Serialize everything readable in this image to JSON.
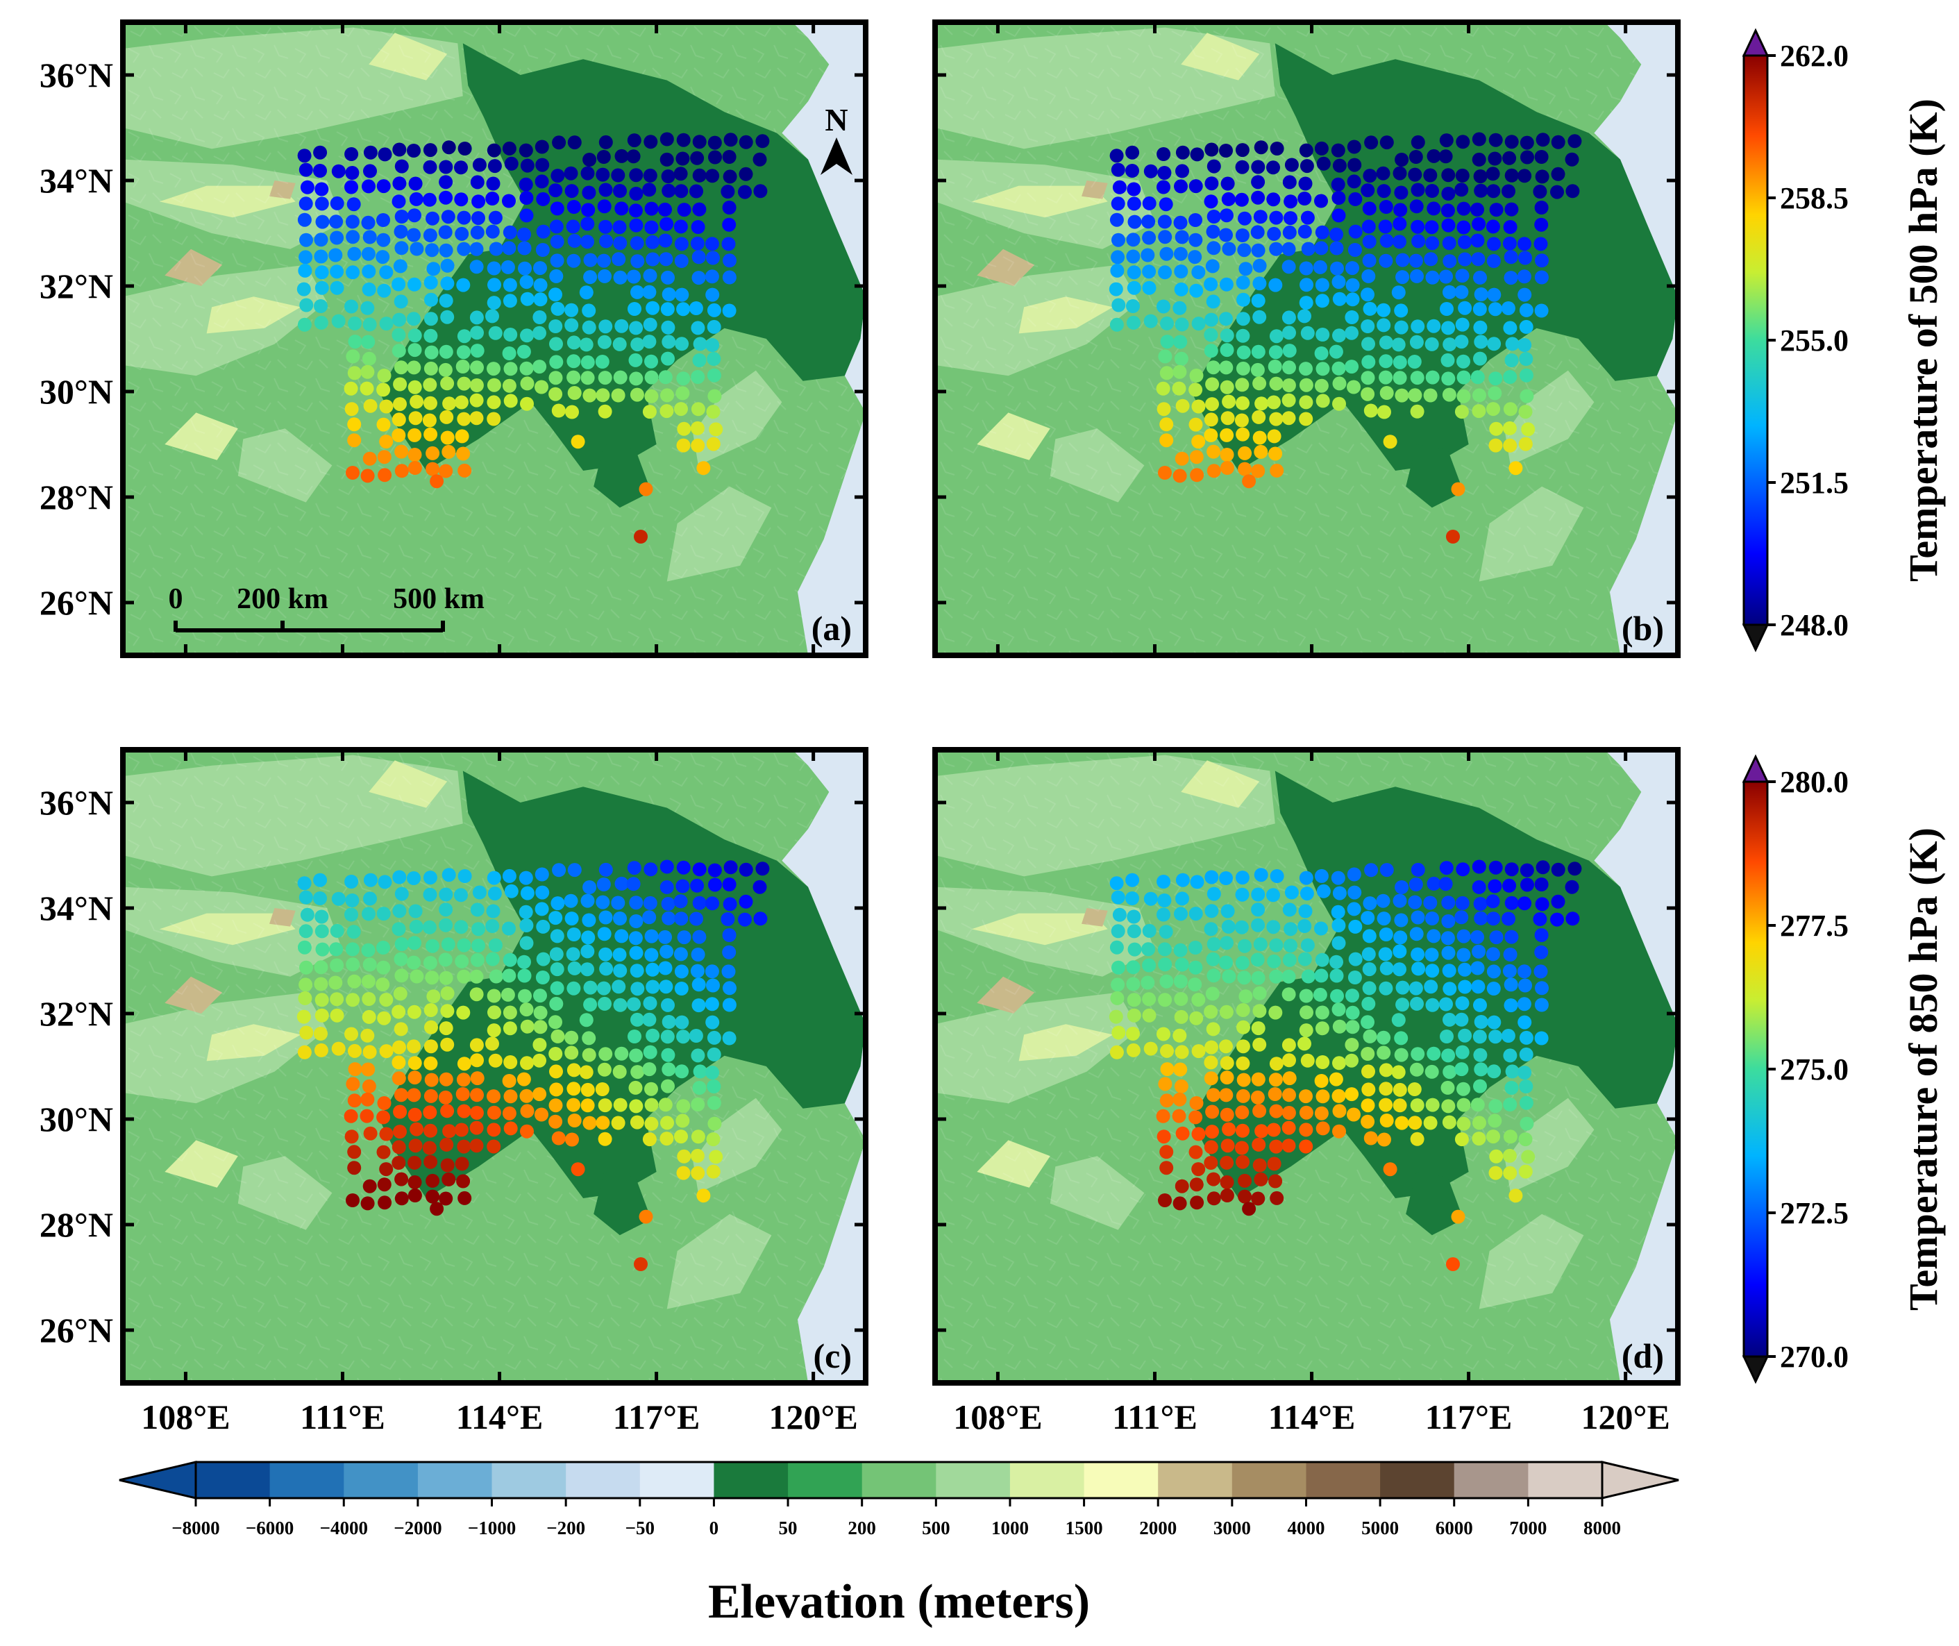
{
  "panels": [
    {
      "label": "(a)",
      "level": "500",
      "variant": "a"
    },
    {
      "label": "(b)",
      "level": "500",
      "variant": "b"
    },
    {
      "label": "(c)",
      "level": "850",
      "variant": "a"
    },
    {
      "label": "(d)",
      "level": "850",
      "variant": "b"
    }
  ],
  "axes": {
    "lat_ticks": [
      "36°N",
      "34°N",
      "32°N",
      "30°N",
      "28°N",
      "26°N"
    ],
    "lat_values": [
      36,
      34,
      32,
      30,
      28,
      26
    ],
    "lon_ticks": [
      "108°E",
      "111°E",
      "114°E",
      "117°E",
      "120°E"
    ],
    "lon_values": [
      108,
      111,
      114,
      117,
      120
    ],
    "lon_range": [
      106.8,
      121.0
    ],
    "lat_range": [
      25.0,
      37.0
    ]
  },
  "north_arrow": "N",
  "scale_bar": {
    "labels": [
      "0",
      "200 km",
      "500 km"
    ]
  },
  "colorbar_500": {
    "title": "Temperature of 500 hPa (K)",
    "ticks": [
      "262.0",
      "258.5",
      "255.0",
      "251.5",
      "248.0"
    ],
    "range": [
      248.0,
      262.0
    ]
  },
  "colorbar_850": {
    "title": "Temperature of 850 hPa (K)",
    "ticks": [
      "280.0",
      "277.5",
      "275.0",
      "272.5",
      "270.0"
    ],
    "range": [
      270.0,
      280.0
    ]
  },
  "elevation_colorbar": {
    "title": "Elevation (meters)",
    "ticks": [
      "−8000",
      "−6000",
      "−4000",
      "−2000",
      "−1000",
      "−200",
      "−50",
      "0",
      "50",
      "200",
      "500",
      "1000",
      "1500",
      "2000",
      "3000",
      "4000",
      "5000",
      "6000",
      "7000",
      "8000"
    ],
    "colors": [
      "#0b4a96",
      "#2171b5",
      "#4292c6",
      "#6baed6",
      "#9ecae1",
      "#c6dbef",
      "#deebf7",
      "#1a7a3c",
      "#31a354",
      "#74c476",
      "#a1d99b",
      "#d9f0a3",
      "#f7fcb9",
      "#c9b98a",
      "#a68d63",
      "#86674a",
      "#5c4430",
      "#a8968c",
      "#d9ccc4"
    ]
  },
  "colors": {
    "sea": "#dae7f3",
    "lowland": "#1a7a3c",
    "low_hills": "#74c476",
    "hills": "#a1d99b",
    "mountain": "#d9f0a3",
    "high": "#c9b98a"
  }
}
